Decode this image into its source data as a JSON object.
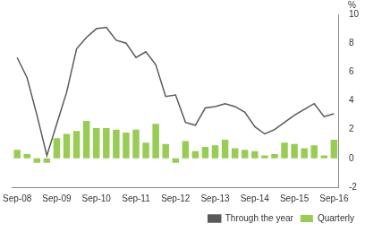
{
  "chart_data": {
    "type": "bar",
    "y_label": "%",
    "categories": [
      "Sep-08",
      null,
      null,
      null,
      "Sep-09",
      null,
      null,
      null,
      "Sep-10",
      null,
      null,
      null,
      "Sep-11",
      null,
      null,
      null,
      "Sep-12",
      null,
      null,
      null,
      "Sep-13",
      null,
      null,
      null,
      "Sep-14",
      null,
      null,
      null,
      "Sep-15",
      null,
      null,
      null,
      "Sep-16"
    ],
    "series": [
      {
        "name": "Quarterly",
        "type": "bar",
        "color": "#99cc55",
        "values": [
          0.6,
          0.3,
          -0.3,
          -0.3,
          1.4,
          1.7,
          1.9,
          2.6,
          2.1,
          2.1,
          2.0,
          1.8,
          2.0,
          1.1,
          2.4,
          1.0,
          -0.3,
          1.2,
          0.5,
          0.8,
          0.9,
          1.3,
          0.7,
          0.6,
          0.5,
          0.2,
          0.3,
          1.1,
          1.0,
          0.7,
          0.9,
          0.2,
          1.3
        ]
      },
      {
        "name": "Through the year",
        "type": "line",
        "color": "#595959",
        "values": [
          7.0,
          5.6,
          3.0,
          0.2,
          2.4,
          4.6,
          7.6,
          8.4,
          9.0,
          9.1,
          8.2,
          8.0,
          7.0,
          7.4,
          6.5,
          4.3,
          4.4,
          2.5,
          2.3,
          3.5,
          3.6,
          3.8,
          3.6,
          3.2,
          2.2,
          1.7,
          2.0,
          2.5,
          3.0,
          3.4,
          3.8,
          2.9,
          3.1
        ]
      }
    ],
    "ylim": [
      -2,
      10
    ],
    "yticks": [
      -2,
      0,
      2,
      4,
      6,
      8,
      10
    ],
    "grid": false,
    "legend": "bottom-right"
  }
}
